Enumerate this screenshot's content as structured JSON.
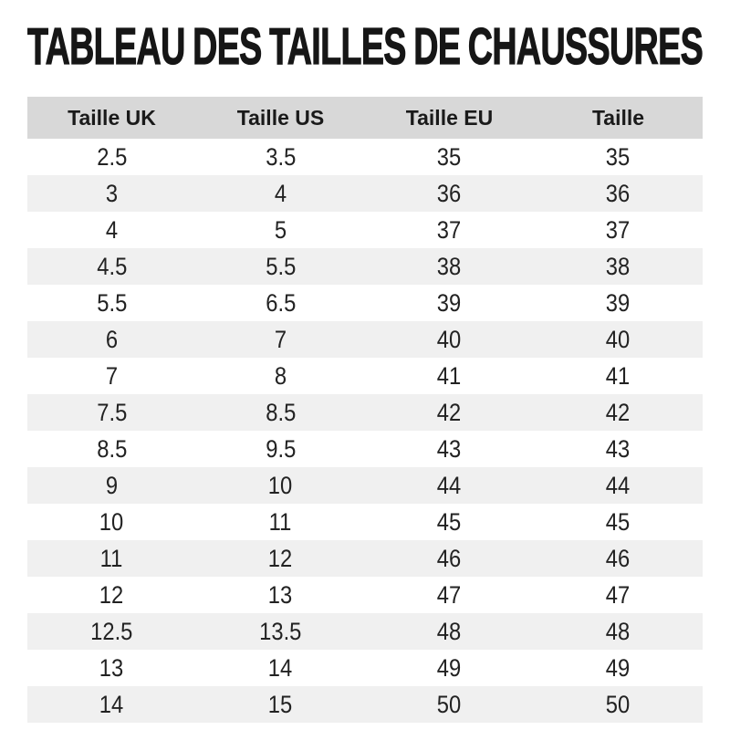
{
  "title": "TABLEAU DES TAILLES DE CHAUSSURES",
  "table": {
    "headers": [
      "Taille UK",
      "Taille US",
      "Taille EU",
      "Taille"
    ],
    "rows": [
      [
        "2.5",
        "3.5",
        "35",
        "35"
      ],
      [
        "3",
        "4",
        "36",
        "36"
      ],
      [
        "4",
        "5",
        "37",
        "37"
      ],
      [
        "4.5",
        "5.5",
        "38",
        "38"
      ],
      [
        "5.5",
        "6.5",
        "39",
        "39"
      ],
      [
        "6",
        "7",
        "40",
        "40"
      ],
      [
        "7",
        "8",
        "41",
        "41"
      ],
      [
        "7.5",
        "8.5",
        "42",
        "42"
      ],
      [
        "8.5",
        "9.5",
        "43",
        "43"
      ],
      [
        "9",
        "10",
        "44",
        "44"
      ],
      [
        "10",
        "11",
        "45",
        "45"
      ],
      [
        "11",
        "12",
        "46",
        "46"
      ],
      [
        "12",
        "13",
        "47",
        "47"
      ],
      [
        "12.5",
        "13.5",
        "48",
        "48"
      ],
      [
        "13",
        "14",
        "49",
        "49"
      ],
      [
        "14",
        "15",
        "50",
        "50"
      ]
    ]
  },
  "colors": {
    "header_bg": "#d8d8d8",
    "stripe_bg": "#f0f0f0",
    "row_bg": "#ffffff",
    "text": "#1b1b1b"
  }
}
